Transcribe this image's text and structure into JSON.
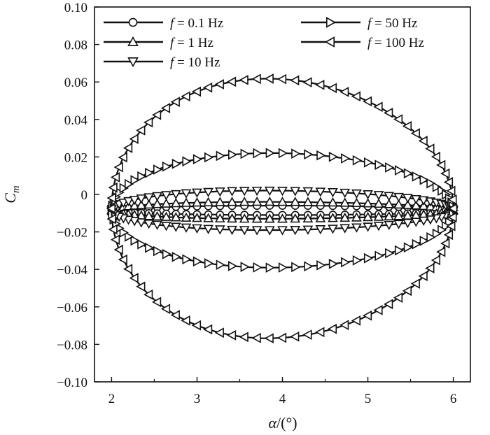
{
  "chart_data": {
    "type": "line",
    "title": "",
    "xlabel": "α/(°)",
    "ylabel": "Cm",
    "xlim": [
      1.8,
      6.2
    ],
    "ylim": [
      -0.1,
      0.1
    ],
    "x_ticks": [
      2,
      3,
      4,
      5,
      6
    ],
    "y_ticks": [
      0.1,
      0.08,
      0.06,
      0.04,
      0.02,
      0,
      -0.02,
      -0.04,
      -0.06,
      -0.08,
      -0.1
    ],
    "x_tick_labels": [
      "2",
      "3",
      "4",
      "5",
      "6"
    ],
    "y_tick_labels": [
      "0.10",
      "0.08",
      "0.06",
      "0.04",
      "0.02",
      "0",
      "−0.02",
      "−0.04",
      "−0.06",
      "−0.08",
      "−0.10"
    ],
    "grid": false,
    "legend_position": "top",
    "line_color": "#111111",
    "series": [
      {
        "name": "f = 0.1 Hz",
        "marker": "circle",
        "amplitude": 0.0025,
        "center": -0.0085,
        "skew": 0.0
      },
      {
        "name": "f = 1 Hz",
        "marker": "triangle-up",
        "amplitude": 0.0045,
        "center": -0.0085,
        "skew": 0.0005
      },
      {
        "name": "f = 10 Hz",
        "marker": "triangle-down",
        "amplitude": 0.0105,
        "center": -0.0085,
        "skew": 0.001
      },
      {
        "name": "f = 50 Hz",
        "marker": "triangle-right",
        "amplitude": 0.0305,
        "center": -0.0085,
        "skew": 0.002
      },
      {
        "name": "f = 100 Hz",
        "marker": "triangle-left",
        "amplitude": 0.069,
        "center": -0.0075,
        "skew": 0.006
      }
    ],
    "x_center": 4.0,
    "x_amplitude": 2.0
  },
  "legend": {
    "entries": [
      {
        "label_prefix": "f",
        "label_rest": " = 0.1 Hz"
      },
      {
        "label_prefix": "f",
        "label_rest": " = 1 Hz"
      },
      {
        "label_prefix": "f",
        "label_rest": " = 10 Hz"
      },
      {
        "label_prefix": "f",
        "label_rest": " = 50 Hz"
      },
      {
        "label_prefix": "f",
        "label_rest": " = 100 Hz"
      }
    ]
  },
  "axes": {
    "ylabel_main": "C",
    "ylabel_sub": "m",
    "xlabel_main": "α",
    "xlabel_rest": "/(°)"
  }
}
